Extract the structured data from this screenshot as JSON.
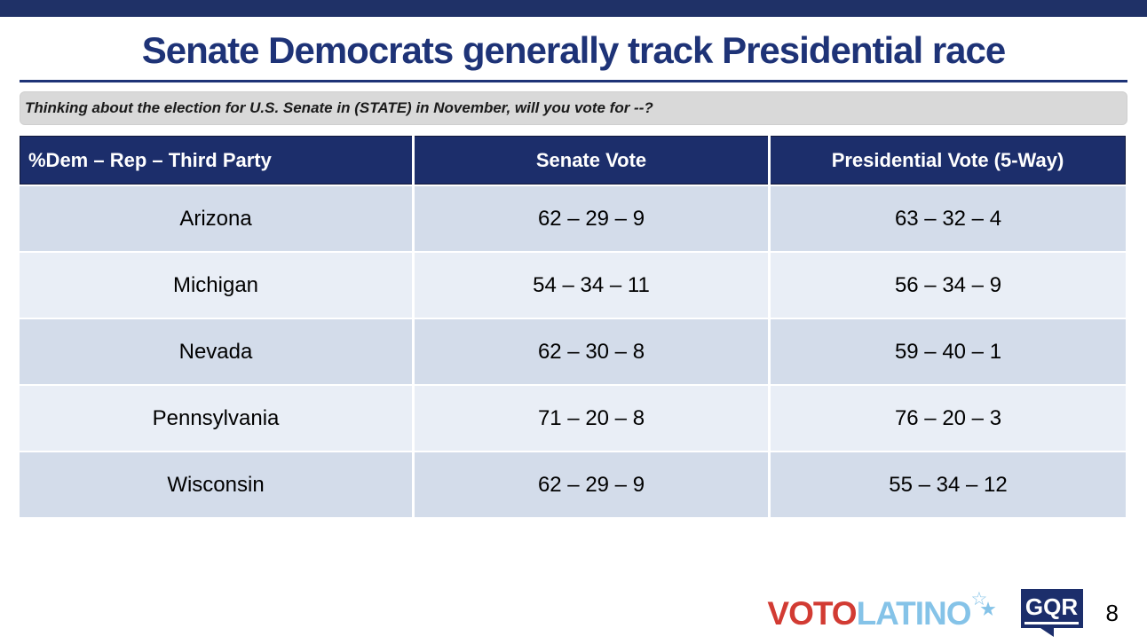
{
  "slide": {
    "title": "Senate Democrats generally track Presidential race",
    "question": "Thinking about the election for U.S. Senate in (STATE) in November, will you vote for --?",
    "page_number": "8"
  },
  "table": {
    "headers": [
      "%Dem – Rep – Third Party",
      "Senate Vote",
      "Presidential Vote (5-Way)"
    ],
    "rows": [
      {
        "state": "Arizona",
        "senate_vote": "62 – 29 – 9",
        "presidential_vote": "63 – 32 – 4"
      },
      {
        "state": "Michigan",
        "senate_vote": "54 – 34 – 11",
        "presidential_vote": "56 – 34 – 9"
      },
      {
        "state": "Nevada",
        "senate_vote": "62 – 30 – 8",
        "presidential_vote": "59 – 40 – 1"
      },
      {
        "state": "Pennsylvania",
        "senate_vote": "71 – 20 – 8",
        "presidential_vote": "76 – 20 – 3"
      },
      {
        "state": "Wisconsin",
        "senate_vote": "62 – 29 – 9",
        "presidential_vote": "55 – 34 – 12"
      }
    ]
  },
  "logos": {
    "voto_latino": {
      "voto": "VOTO",
      "latino": "LATINO",
      "star_outline_icon": "☆",
      "star_filled_icon": "★"
    },
    "gqr": {
      "text": "GQR"
    }
  },
  "colors": {
    "navy_bar": "#1f3167",
    "title_blue": "#1e3377",
    "table_header_navy": "#1c2e6b",
    "row_dark": "#d3dcea",
    "row_light": "#e9eef6",
    "question_bg": "#d9d9d9",
    "voto_red": "#d23b33",
    "latino_blue": "#85c3e8"
  }
}
